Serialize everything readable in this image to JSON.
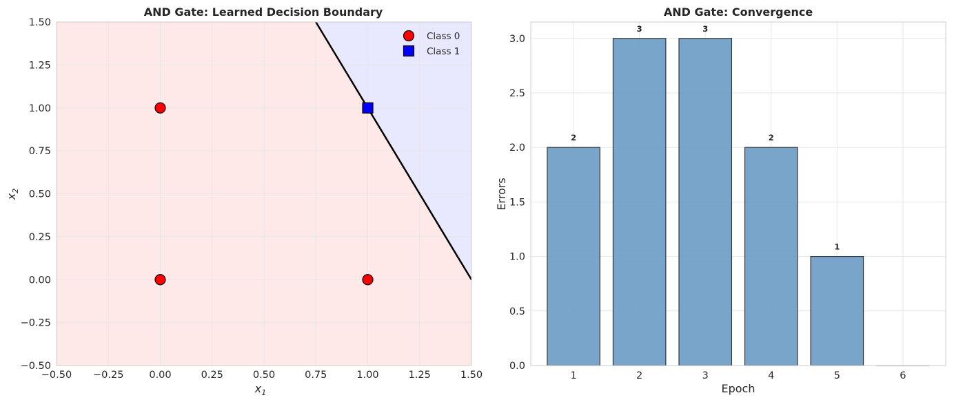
{
  "chart_data": [
    {
      "type": "scatter",
      "title": "AND Gate: Learned Decision Boundary",
      "xlabel": "x",
      "xlabel_sub": "1",
      "ylabel": "x",
      "ylabel_sub": "2",
      "xlim": [
        -0.5,
        1.5
      ],
      "ylim": [
        -0.5,
        1.5
      ],
      "xticks": [
        -0.5,
        -0.25,
        0.0,
        0.25,
        0.5,
        0.75,
        1.0,
        1.25,
        1.5
      ],
      "yticks": [
        -0.5,
        -0.25,
        0.0,
        0.25,
        0.5,
        0.75,
        1.0,
        1.25,
        1.5
      ],
      "xtick_labels": [
        "−0.50",
        "−0.25",
        "0.00",
        "0.25",
        "0.50",
        "0.75",
        "1.00",
        "1.25",
        "1.50"
      ],
      "ytick_labels": [
        "−0.50",
        "−0.25",
        "0.00",
        "0.25",
        "0.50",
        "0.75",
        "1.00",
        "1.25",
        "1.50"
      ],
      "grid": true,
      "legend_position": "top-right",
      "decision_boundary": {
        "points": [
          [
            0.75,
            1.5
          ],
          [
            1.5,
            0.0
          ]
        ],
        "color": "#000000"
      },
      "regions": {
        "class0_color": "#ffe8e8",
        "class1_color": "#e8e8ff"
      },
      "series": [
        {
          "name": "Class 0",
          "marker": "circle",
          "color": "#ff0000",
          "points": [
            [
              0,
              0
            ],
            [
              0,
              1
            ],
            [
              1,
              0
            ]
          ]
        },
        {
          "name": "Class 1",
          "marker": "square",
          "color": "#0000ff",
          "points": [
            [
              1,
              1
            ]
          ]
        }
      ]
    },
    {
      "type": "bar",
      "title": "AND Gate: Convergence",
      "xlabel": "Epoch",
      "ylabel": "Errors",
      "categories": [
        "1",
        "2",
        "3",
        "4",
        "5",
        "6"
      ],
      "values": [
        2,
        3,
        3,
        2,
        1,
        0
      ],
      "data_labels": [
        "2",
        "3",
        "3",
        "2",
        "1",
        ""
      ],
      "ylim": [
        0,
        3.15
      ],
      "yticks": [
        0,
        0.5,
        1.0,
        1.5,
        2.0,
        2.5,
        3.0
      ],
      "ytick_labels": [
        "0.0",
        "0.5",
        "1.0",
        "1.5",
        "2.0",
        "2.5",
        "3.0"
      ],
      "grid": true,
      "bar_color": "#6b9bc5",
      "bar_edge": "#333333"
    }
  ]
}
